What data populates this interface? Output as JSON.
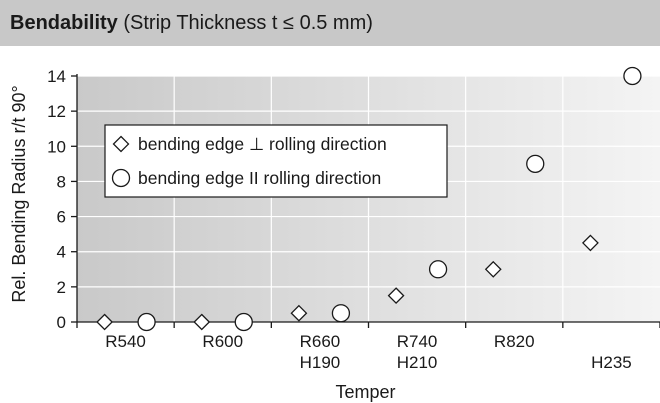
{
  "header": {
    "title_bold": "Bendability",
    "title_rest": " (Strip Thickness t ≤ 0.5 mm)"
  },
  "chart_data": {
    "type": "scatter",
    "title": "Bendability (Strip Thickness t ≤ 0.5 mm)",
    "xlabel": "Temper",
    "ylabel": "Rel. Bending Radius r/t 90°",
    "ylim": [
      0,
      14
    ],
    "yticks": [
      0,
      2,
      4,
      6,
      8,
      10,
      12,
      14
    ],
    "grid": true,
    "legend_position": "top-left",
    "categories": [
      {
        "lines": [
          "R540"
        ]
      },
      {
        "lines": [
          "R600"
        ]
      },
      {
        "lines": [
          "R660",
          "H190"
        ]
      },
      {
        "lines": [
          "R740",
          "H210"
        ]
      },
      {
        "lines": [
          "R820"
        ]
      },
      {
        "lines": [
          "",
          "H235"
        ]
      }
    ],
    "series": [
      {
        "name": "bending edge ⊥ rolling direction",
        "marker": "diamond",
        "values": [
          0,
          0,
          0.5,
          1.5,
          3,
          4.5
        ]
      },
      {
        "name": "bending edge II rolling direction",
        "marker": "circle",
        "values": [
          0,
          0,
          0.5,
          3,
          9,
          14
        ]
      }
    ],
    "colors": {
      "plot_bg_left": "#c9c9c9",
      "plot_bg_right": "#f4f4f4",
      "grid": "#ffffff",
      "marker_fill": "#ffffff",
      "marker_stroke": "#1a1a1a"
    }
  }
}
